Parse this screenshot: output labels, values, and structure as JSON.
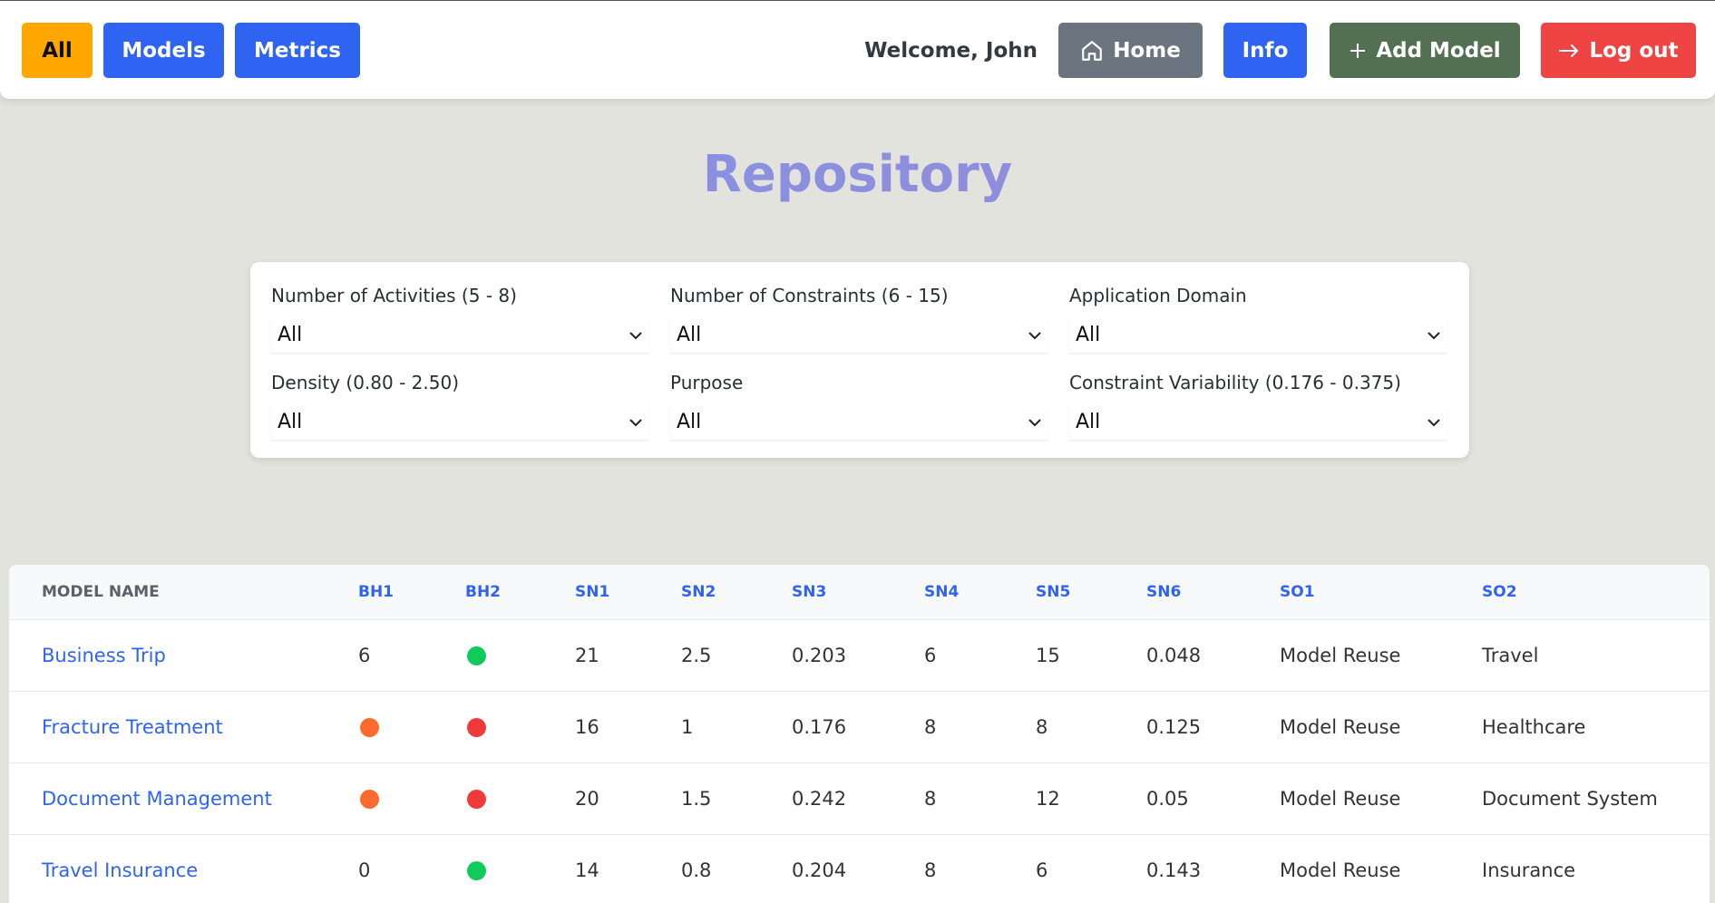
{
  "nav": {
    "all_label": "All",
    "models_label": "Models",
    "metrics_label": "Metrics",
    "welcome_text": "Welcome, John",
    "home_label": "Home",
    "info_label": "Info",
    "add_model_label": "Add Model",
    "logout_label": "Log out"
  },
  "page_title": "Repository",
  "filters": [
    {
      "label": "Number of Activities (5 - 8)",
      "value": "All"
    },
    {
      "label": "Number of Constraints (6 - 15)",
      "value": "All"
    },
    {
      "label": "Application Domain",
      "value": "All"
    },
    {
      "label": "Density (0.80 - 2.50)",
      "value": "All"
    },
    {
      "label": "Purpose",
      "value": "All"
    },
    {
      "label": "Constraint Variability (0.176 - 0.375)",
      "value": "All"
    }
  ],
  "table": {
    "columns": [
      "MODEL NAME",
      "BH1",
      "BH2",
      "SN1",
      "SN2",
      "SN3",
      "SN4",
      "SN5",
      "SN6",
      "SO1",
      "SO2"
    ],
    "rows": [
      {
        "name": "Business Trip",
        "bh1": "6",
        "bh2": "green",
        "sn1": "21",
        "sn2": "2.5",
        "sn3": "0.203",
        "sn4": "6",
        "sn5": "15",
        "sn6": "0.048",
        "so1": "Model Reuse",
        "so2": "Travel"
      },
      {
        "name": "Fracture Treatment",
        "bh1": "orange",
        "bh2": "red",
        "sn1": "16",
        "sn2": "1",
        "sn3": "0.176",
        "sn4": "8",
        "sn5": "8",
        "sn6": "0.125",
        "so1": "Model Reuse",
        "so2": "Healthcare"
      },
      {
        "name": "Document Management",
        "bh1": "orange",
        "bh2": "red",
        "sn1": "20",
        "sn2": "1.5",
        "sn3": "0.242",
        "sn4": "8",
        "sn5": "12",
        "sn6": "0.05",
        "so1": "Model Reuse",
        "so2": "Document System"
      },
      {
        "name": "Travel Insurance",
        "bh1": "0",
        "bh2": "green",
        "sn1": "14",
        "sn2": "0.8",
        "sn3": "0.204",
        "sn4": "8",
        "sn5": "6",
        "sn6": "0.143",
        "so1": "Model Reuse",
        "so2": "Insurance"
      }
    ]
  },
  "colors": {
    "green": "#0fcb5c",
    "red": "#f03a3a",
    "orange": "#fb6a2c",
    "primary": "#2f63f2"
  }
}
